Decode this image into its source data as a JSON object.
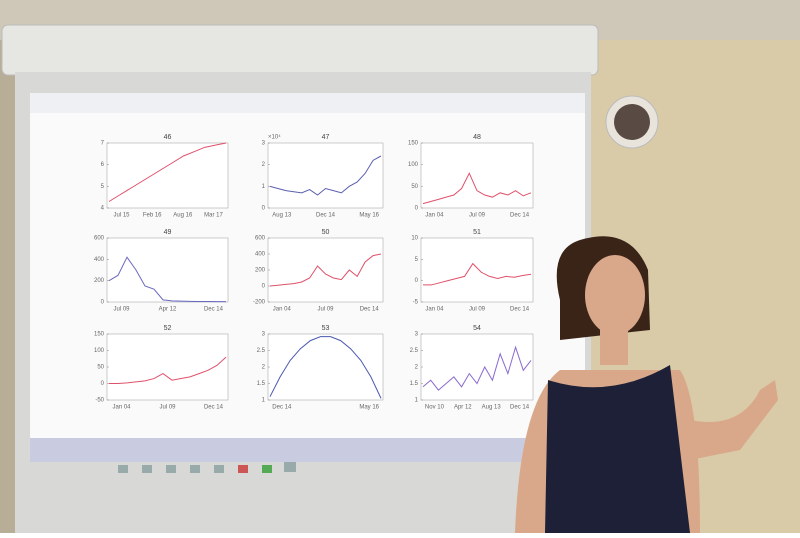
{
  "screen": {
    "panels": [
      {
        "title": "46",
        "color": "#e0506a",
        "ylim": [
          4,
          7
        ],
        "yticks": [
          4,
          5,
          6,
          7
        ],
        "xticks": [
          "Jul 15",
          "Feb 16",
          "Aug 16",
          "Mar 17"
        ],
        "values": [
          4.3,
          4.6,
          4.9,
          5.2,
          5.5,
          5.8,
          6.1,
          6.4,
          6.6,
          6.8,
          6.9,
          7.0
        ]
      },
      {
        "title": "47",
        "multiplier": "×10⁴",
        "color": "#5a5fb0",
        "ylim": [
          0,
          3
        ],
        "yticks": [
          0,
          1,
          2,
          3
        ],
        "xticks": [
          "Aug 13",
          "Dec 14",
          "May 16"
        ],
        "values": [
          1.0,
          0.9,
          0.8,
          0.75,
          0.7,
          0.85,
          0.6,
          0.9,
          0.8,
          0.7,
          1.0,
          1.2,
          1.6,
          2.2,
          2.4
        ]
      },
      {
        "title": "48",
        "color": "#e0506a",
        "ylim": [
          0,
          150
        ],
        "yticks": [
          0,
          50,
          100,
          150
        ],
        "xticks": [
          "Jan 04",
          "Jul 09",
          "Dec 14"
        ],
        "values": [
          10,
          15,
          20,
          25,
          30,
          45,
          80,
          40,
          30,
          25,
          35,
          30,
          40,
          28,
          35
        ]
      },
      {
        "title": "49",
        "color": "#6a68c0",
        "ylim": [
          0,
          600
        ],
        "yticks": [
          0,
          200,
          400,
          600
        ],
        "xticks": [
          "Jul 09",
          "Apr 12",
          "Dec 14"
        ],
        "values": [
          200,
          250,
          420,
          300,
          150,
          120,
          20,
          10,
          8,
          6,
          5,
          5,
          4,
          4
        ]
      },
      {
        "title": "50",
        "color": "#e0506a",
        "ylim": [
          -200,
          600
        ],
        "yticks": [
          -200,
          0,
          200,
          400,
          600
        ],
        "xticks": [
          "Jan 04",
          "Jul 09",
          "Dec 14"
        ],
        "values": [
          0,
          10,
          20,
          30,
          50,
          100,
          250,
          150,
          100,
          80,
          200,
          120,
          300,
          380,
          400
        ]
      },
      {
        "title": "51",
        "color": "#e0506a",
        "ylim": [
          -5,
          10
        ],
        "yticks": [
          -5,
          0,
          5,
          10
        ],
        "xticks": [
          "Jan 04",
          "Jul 09",
          "Dec 14"
        ],
        "values": [
          -1,
          -1,
          -0.5,
          0,
          0.5,
          1,
          4,
          2,
          1,
          0.5,
          1,
          0.8,
          1.2,
          1.5
        ]
      },
      {
        "title": "52",
        "color": "#e0506a",
        "ylim": [
          -50,
          150
        ],
        "yticks": [
          -50,
          0,
          50,
          100,
          150
        ],
        "xticks": [
          "Jan 04",
          "Jul 09",
          "Dec 14"
        ],
        "values": [
          0,
          0,
          2,
          5,
          8,
          15,
          30,
          10,
          15,
          20,
          30,
          40,
          55,
          80
        ]
      },
      {
        "title": "53",
        "color": "#4a58b0",
        "ylim": [
          1,
          3
        ],
        "yticks": [
          1,
          1.5,
          2,
          2.5,
          3
        ],
        "xticks": [
          "Dec 14",
          "May 16"
        ],
        "values": [
          1.1,
          1.7,
          2.2,
          2.55,
          2.8,
          2.92,
          2.92,
          2.8,
          2.55,
          2.2,
          1.7,
          1.05
        ]
      },
      {
        "title": "54",
        "color": "#8a6ad0",
        "ylim": [
          1,
          3
        ],
        "yticks": [
          1,
          1.5,
          2,
          2.5,
          3
        ],
        "xticks": [
          "Nov 10",
          "Apr 12",
          "Aug 13",
          "Dec 14"
        ],
        "values": [
          1.4,
          1.6,
          1.3,
          1.5,
          1.7,
          1.4,
          1.8,
          1.5,
          2.0,
          1.6,
          2.4,
          1.8,
          2.6,
          1.9,
          2.2
        ]
      }
    ]
  }
}
